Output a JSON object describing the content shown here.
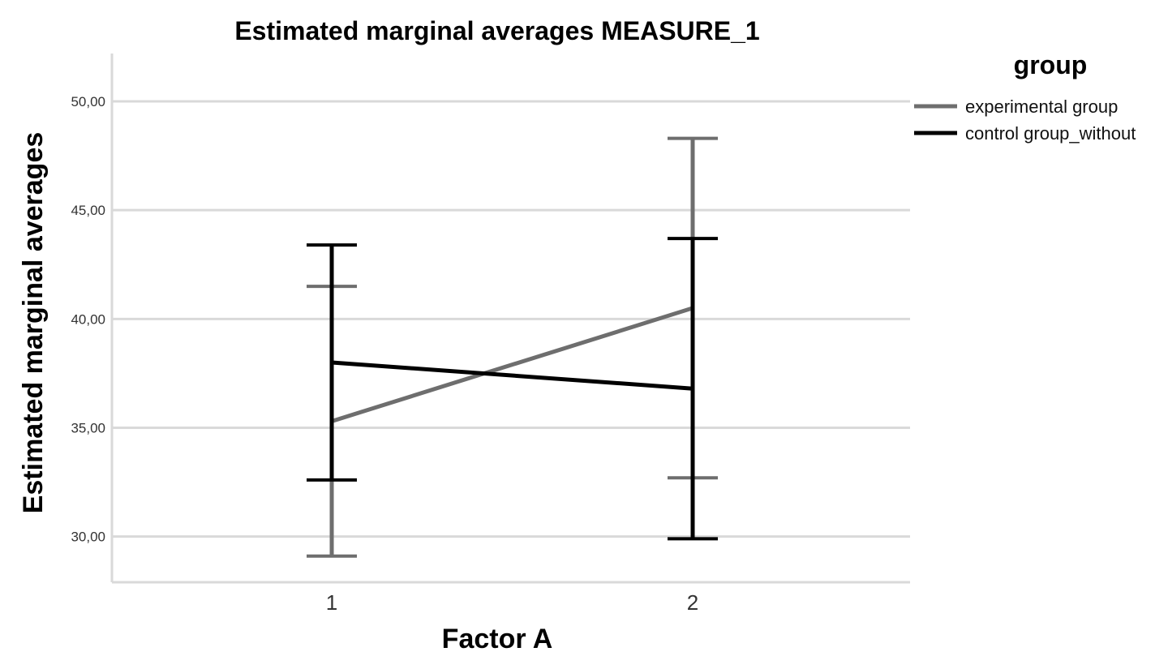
{
  "chart_data": {
    "type": "line",
    "title": "Estimated marginal averages MEASURE_1",
    "xlabel": "Factor A",
    "ylabel": "Estimated marginal averages",
    "categories": [
      "1",
      "2"
    ],
    "y_tick_labels": [
      "30,00",
      "35,00",
      "40,00",
      "45,00",
      "50,00"
    ],
    "y_ticks": [
      30,
      35,
      40,
      45,
      50
    ],
    "ylim": [
      27.9,
      52.2
    ],
    "grid": "horizontal",
    "legend": {
      "title": "group",
      "placement": "right"
    },
    "error_bars": true,
    "series": [
      {
        "name": "experimental group",
        "color": "#6e6e6e",
        "values": [
          35.3,
          40.5
        ],
        "lower": [
          29.1,
          32.7
        ],
        "upper": [
          41.5,
          48.3
        ]
      },
      {
        "name": "control group_without",
        "color": "#000000",
        "values": [
          38.0,
          36.8
        ],
        "lower": [
          32.6,
          29.9
        ],
        "upper": [
          43.4,
          43.7
        ]
      }
    ]
  }
}
